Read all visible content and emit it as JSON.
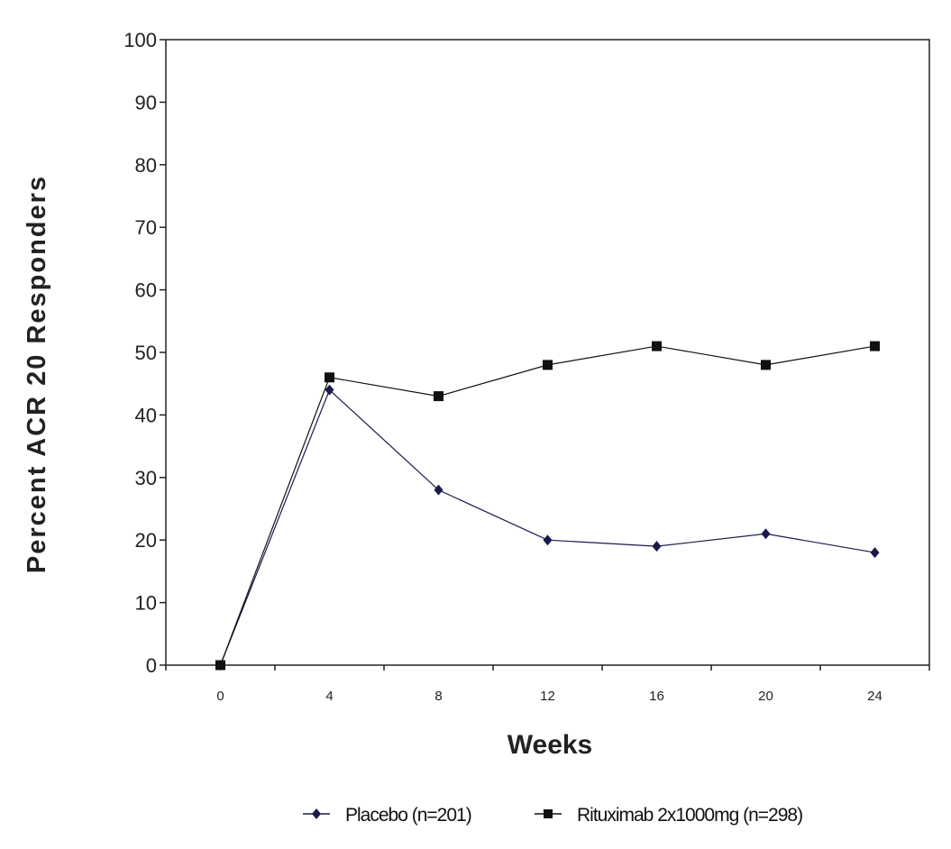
{
  "chart_data": {
    "type": "line",
    "title": "",
    "xlabel": "Weeks",
    "ylabel": "Percent ACR 20 Responders",
    "categories": [
      "0",
      "4",
      "8",
      "12",
      "16",
      "20",
      "24"
    ],
    "ylim": [
      0,
      100
    ],
    "yticks": [
      "0",
      "10",
      "20",
      "30",
      "40",
      "50",
      "60",
      "70",
      "80",
      "90",
      "100"
    ],
    "grid": false,
    "legend_position": "bottom",
    "series": [
      {
        "name": "Placebo (n=201)",
        "marker": "diamond",
        "color": "#1a1a4a",
        "values": [
          0,
          44,
          28,
          20,
          19,
          21,
          18
        ]
      },
      {
        "name": "Rituximab 2x1000mg (n=298)",
        "marker": "square",
        "color": "#111111",
        "values": [
          0,
          46,
          43,
          48,
          51,
          48,
          51
        ]
      }
    ]
  }
}
